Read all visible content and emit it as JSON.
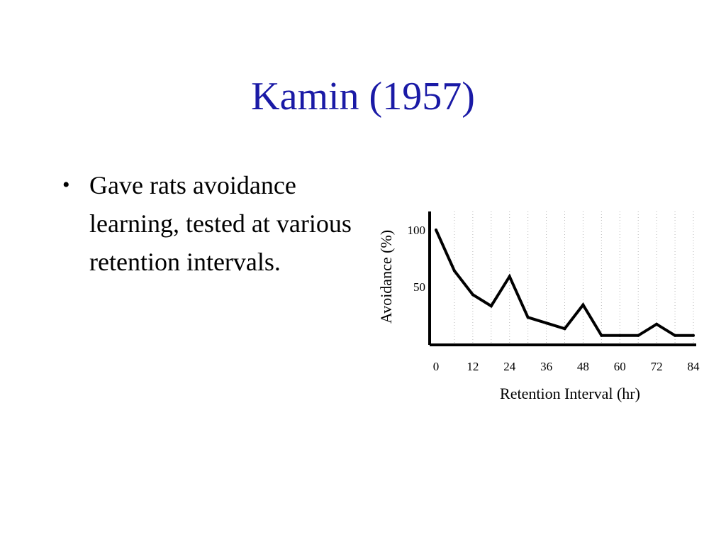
{
  "slide": {
    "title": "Kamin (1957)",
    "bullets": [
      "Gave rats avoidance learning, tested at various retention intervals."
    ]
  },
  "chart_data": {
    "type": "line",
    "title": "",
    "xlabel": "Retention Interval (hr)",
    "ylabel": "Avoidance (%)",
    "xlim": [
      0,
      84
    ],
    "ylim": [
      0,
      100
    ],
    "xticks": [
      0,
      12,
      24,
      36,
      48,
      60,
      72,
      84
    ],
    "yticks": [
      50,
      100
    ],
    "vertical_grid": "dotted",
    "line_color": "#000000",
    "series": [
      {
        "x": [
          0,
          6,
          12,
          18,
          24,
          30,
          36,
          42,
          48,
          54,
          60,
          66,
          72,
          78,
          84
        ],
        "y": [
          100,
          64,
          43,
          33,
          59,
          23,
          18,
          13,
          34,
          7,
          7,
          7,
          17,
          7,
          7
        ]
      }
    ]
  }
}
